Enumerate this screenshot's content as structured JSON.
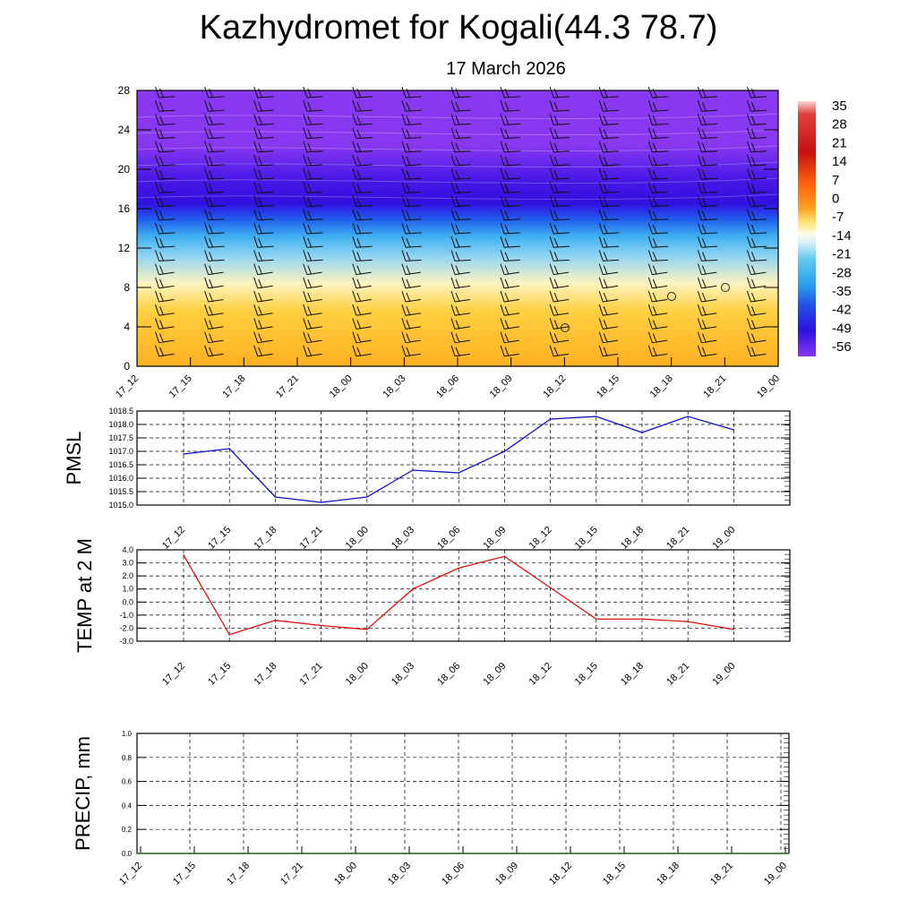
{
  "title": "Kazhydromet for Kogali(44.3 78.7)",
  "date": "17 March 2026",
  "chart_data": [
    {
      "type": "heatmap",
      "name": "vertical temperature cross-section with wind barbs",
      "x_labels": [
        "17_12",
        "17_15",
        "17_18",
        "17_21",
        "18_00",
        "18_03",
        "18_06",
        "18_09",
        "18_12",
        "18_15",
        "18_18",
        "18_21",
        "19_00"
      ],
      "y_ticks": [
        0,
        4,
        8,
        12,
        16,
        20,
        24,
        28
      ],
      "ylim": [
        0,
        28
      ],
      "colorbar_labels": [
        "35",
        "28",
        "21",
        "14",
        "7",
        "0",
        "-7",
        "-14",
        "-21",
        "-28",
        "-35",
        "-42",
        "-49",
        "-56"
      ],
      "colors": {
        "warm": "#ffb020",
        "mid": "#fff4c0",
        "cool": "#40b0f0",
        "cold": "#3010e0",
        "top": "#8838f0"
      }
    },
    {
      "type": "line",
      "ylabel": "PMSL",
      "x_labels": [
        "17_12",
        "17_15",
        "17_18",
        "17_21",
        "18_00",
        "18_03",
        "18_06",
        "18_09",
        "18_12",
        "18_15",
        "18_18",
        "18_21",
        "19_00"
      ],
      "values": [
        1016.9,
        1017.1,
        1015.3,
        1015.1,
        1015.3,
        1016.3,
        1016.2,
        1017.0,
        1018.2,
        1018.3,
        1017.7,
        1018.3,
        1017.8
      ],
      "y_ticks": [
        "1015.0",
        "1015.5",
        "1016.0",
        "1016.5",
        "1017.0",
        "1017.5",
        "1018.0",
        "1018.5"
      ],
      "ylim": [
        1015.0,
        1018.5
      ],
      "color": "#1010d0"
    },
    {
      "type": "line",
      "ylabel": "TEMP at 2 M",
      "x_labels": [
        "17_12",
        "17_15",
        "17_18",
        "17_21",
        "18_00",
        "18_03",
        "18_06",
        "18_09",
        "18_12",
        "18_15",
        "18_18",
        "18_21",
        "19_00"
      ],
      "values": [
        3.6,
        -2.5,
        -1.4,
        -1.8,
        -2.1,
        1.0,
        2.6,
        3.5,
        1.1,
        -1.3,
        -1.3,
        -1.5,
        -2.1
      ],
      "y_ticks": [
        "-3.0",
        "-2.0",
        "-1.0",
        "0.0",
        "1.0",
        "2.0",
        "3.0",
        "4.0"
      ],
      "ylim": [
        -3.0,
        4.0
      ],
      "color": "#e01010"
    },
    {
      "type": "line",
      "ylabel": "PRECIP, mm",
      "x_labels": [
        "17_12",
        "17_15",
        "17_18",
        "17_21",
        "18_00",
        "18_03",
        "18_06",
        "18_09",
        "18_12",
        "18_15",
        "18_18",
        "18_21",
        "19_00"
      ],
      "values": [
        0,
        0,
        0,
        0,
        0,
        0,
        0,
        0,
        0,
        0,
        0,
        0,
        0
      ],
      "y_ticks": [
        "0.0",
        "0.2",
        "0.4",
        "0.6",
        "0.8",
        "1.0"
      ],
      "ylim": [
        0,
        1.0
      ],
      "color": "#106010"
    }
  ]
}
